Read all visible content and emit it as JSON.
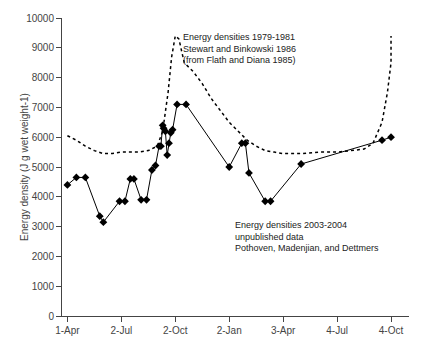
{
  "chart_data": {
    "type": "line",
    "ylabel": "Energy density (J g wet weight-1)",
    "series": [
      {
        "x": [
          0.0,
          0.5,
          1.0,
          1.5,
          2.0,
          2.5,
          3.0,
          3.5,
          4.0,
          4.5,
          5.0,
          5.3,
          5.6,
          5.8,
          6.0,
          6.2,
          6.5,
          7.0,
          7.5,
          8.0,
          8.5,
          9.0,
          9.5,
          10.0,
          10.5,
          11.0,
          11.5,
          12.0,
          13.0,
          14.0,
          15.0,
          16.0,
          16.5,
          17.0,
          17.5,
          17.8,
          18.0,
          18.0
        ],
        "values": [
          6050,
          5900,
          5700,
          5550,
          5450,
          5450,
          5500,
          5500,
          5500,
          5550,
          5700,
          6200,
          7500,
          8700,
          9400,
          9300,
          8500,
          8200,
          7800,
          7300,
          6900,
          6500,
          6200,
          5900,
          5700,
          5550,
          5500,
          5450,
          5450,
          5500,
          5500,
          5550,
          5600,
          5800,
          6500,
          7500,
          8500,
          9400
        ],
        "color": "#000000",
        "line_style": "dotted"
      },
      {
        "x": [
          0.0,
          0.5,
          1.0,
          1.8,
          2.0,
          2.9,
          3.2,
          3.5,
          3.7,
          4.1,
          4.4,
          4.7,
          4.9,
          5.1,
          5.2,
          5.3,
          5.35,
          5.45,
          5.55,
          5.65,
          5.75,
          5.85,
          6.1,
          6.6,
          9.0,
          9.7,
          9.9,
          10.1,
          11.0,
          11.3,
          13.0,
          17.5,
          18.0
        ],
        "values": [
          4400,
          4650,
          4650,
          3350,
          3150,
          3850,
          3850,
          4600,
          4600,
          3900,
          3900,
          4900,
          5050,
          5700,
          5700,
          6400,
          6300,
          6200,
          5400,
          5800,
          6150,
          6250,
          7100,
          7100,
          5000,
          5800,
          5800,
          4800,
          3850,
          3850,
          5100,
          5900,
          6000
        ],
        "color": "#000000",
        "line_style": "solid",
        "marker": "diamond"
      }
    ],
    "xlim": [
      -0.3,
      19.0
    ],
    "xticks": [
      {
        "value": 0,
        "label": "1-Apr"
      },
      {
        "value": 3,
        "label": "2-Jul"
      },
      {
        "value": 6,
        "label": "2-Oct"
      },
      {
        "value": 9,
        "label": "2-Jan"
      },
      {
        "value": 12,
        "label": "3-Apr"
      },
      {
        "value": 15,
        "label": "4-Jul"
      },
      {
        "value": 18,
        "label": "4-Oct"
      }
    ],
    "ylim": [
      0,
      10000
    ],
    "yticks": [
      0,
      1000,
      2000,
      3000,
      4000,
      5000,
      6000,
      7000,
      8000,
      9000,
      10000
    ],
    "annotations": [
      {
        "text": "Energy densities 1979-1981\nStewart and Binkowski 1986\n(from Flath and Diana 1985)",
        "x": 6.3,
        "y": 9600
      },
      {
        "text": "Energy densities 2003-2004\nunpublished data\nPothoven, Madenjian, and Dettmers",
        "x": 9.2,
        "y": 3300
      }
    ],
    "grid": false
  }
}
